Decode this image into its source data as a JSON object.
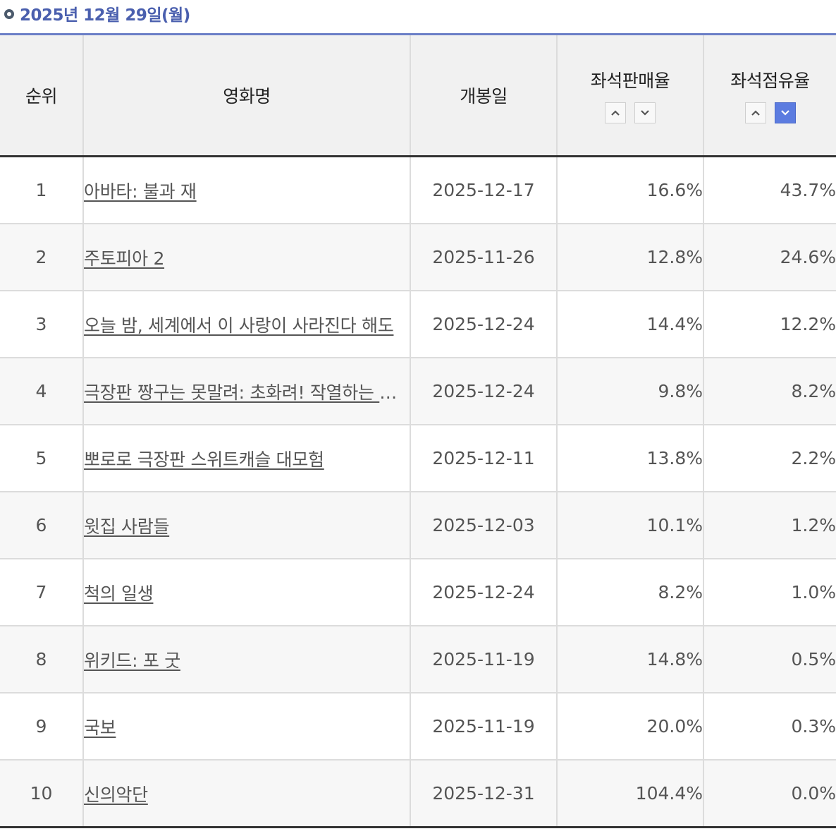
{
  "date_label": "2025년 12월 29일(월)",
  "columns": {
    "rank": "순위",
    "title": "영화명",
    "release": "개봉일",
    "sales_rate": "좌석판매율",
    "share_rate": "좌석점유율"
  },
  "sort": {
    "sales_rate": "none",
    "share_rate": "descending"
  },
  "colors": {
    "date_text": "#4a5fae",
    "rule": "#6b7fc7",
    "active_sort": "#5c7ce0"
  },
  "rows": [
    {
      "rank": "1",
      "title": "아바타: 불과 재",
      "release": "2025-12-17",
      "sales": "16.6%",
      "share": "43.7%"
    },
    {
      "rank": "2",
      "title": "주토피아 2",
      "release": "2025-11-26",
      "sales": "12.8%",
      "share": "24.6%"
    },
    {
      "rank": "3",
      "title": "오늘 밤, 세계에서 이 사랑이 사라진다 해도",
      "release": "2025-12-24",
      "sales": "14.4%",
      "share": "12.2%"
    },
    {
      "rank": "4",
      "title": "극장판 짱구는 못말려: 초화려! 작열하는 떡잎마을 댄서즈",
      "release": "2025-12-24",
      "sales": "9.8%",
      "share": "8.2%"
    },
    {
      "rank": "5",
      "title": "뽀로로 극장판 스위트캐슬 대모험",
      "release": "2025-12-11",
      "sales": "13.8%",
      "share": "2.2%"
    },
    {
      "rank": "6",
      "title": "윗집 사람들",
      "release": "2025-12-03",
      "sales": "10.1%",
      "share": "1.2%"
    },
    {
      "rank": "7",
      "title": "척의 일생",
      "release": "2025-12-24",
      "sales": "8.2%",
      "share": "1.0%"
    },
    {
      "rank": "8",
      "title": "위키드: 포 굿",
      "release": "2025-11-19",
      "sales": "14.8%",
      "share": "0.5%"
    },
    {
      "rank": "9",
      "title": "국보",
      "release": "2025-11-19",
      "sales": "20.0%",
      "share": "0.3%"
    },
    {
      "rank": "10",
      "title": "신의악단",
      "release": "2025-12-31",
      "sales": "104.4%",
      "share": "0.0%"
    }
  ]
}
